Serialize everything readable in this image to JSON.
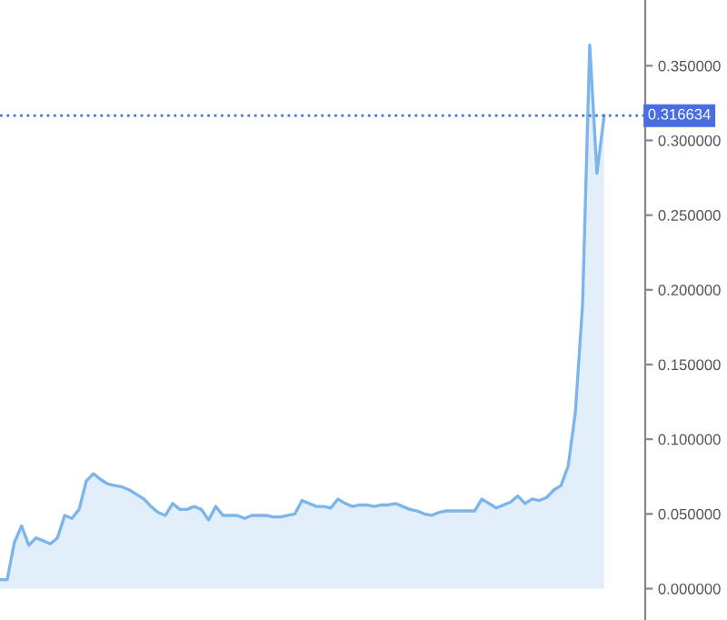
{
  "chart_data": {
    "type": "area",
    "categories": [
      null,
      null,
      null,
      null,
      null,
      null,
      null,
      null,
      null,
      null,
      null,
      null,
      null,
      null,
      null,
      null,
      null,
      null,
      null,
      null,
      null,
      null,
      null,
      null,
      null,
      null,
      null,
      null,
      null,
      null,
      null,
      null,
      null,
      null,
      null,
      null,
      null,
      null,
      null,
      null,
      null,
      null,
      null,
      null,
      null,
      null,
      null,
      null,
      null,
      null,
      null,
      null,
      null,
      null,
      null,
      null,
      null,
      null,
      null,
      null,
      null,
      null,
      null,
      null,
      null,
      null,
      null,
      null,
      null,
      null,
      null,
      null,
      null,
      null,
      null,
      null,
      null,
      null,
      null,
      null,
      null,
      null,
      null,
      null,
      null
    ],
    "series": [
      {
        "color": "#7cb5ec",
        "values": [
          0.006,
          0.006,
          0.031,
          0.042,
          0.029,
          0.034,
          0.032,
          0.03,
          0.034,
          0.049,
          0.047,
          0.053,
          0.072,
          0.077,
          0.073,
          0.07,
          0.069,
          0.068,
          0.066,
          0.063,
          0.06,
          0.055,
          0.051,
          0.049,
          0.057,
          0.053,
          0.053,
          0.055,
          0.053,
          0.046,
          0.055,
          0.049,
          0.049,
          0.049,
          0.047,
          0.049,
          0.049,
          0.049,
          0.048,
          0.048,
          0.049,
          0.05,
          0.059,
          0.057,
          0.055,
          0.055,
          0.054,
          0.06,
          0.057,
          0.055,
          0.056,
          0.056,
          0.055,
          0.056,
          0.056,
          0.057,
          0.055,
          0.053,
          0.052,
          0.05,
          0.049,
          0.051,
          0.052,
          0.052,
          0.052,
          0.052,
          0.052,
          0.06,
          0.057,
          0.054,
          0.056,
          0.058,
          0.062,
          0.057,
          0.06,
          0.059,
          0.061,
          0.066,
          0.069,
          0.082,
          0.118,
          0.19,
          0.364,
          0.278,
          0.316634
        ]
      }
    ],
    "ylim": [
      -0.021,
      0.394
    ],
    "yticks": [
      {
        "value": 0,
        "label": "0.000000"
      },
      {
        "value": 0.05,
        "label": "0.050000"
      },
      {
        "value": 0.1,
        "label": "0.100000"
      },
      {
        "value": 0.15,
        "label": "0.150000"
      },
      {
        "value": 0.2,
        "label": "0.200000"
      },
      {
        "value": 0.25,
        "label": "0.250000"
      },
      {
        "value": 0.3,
        "label": "0.300000"
      },
      {
        "value": 0.35,
        "label": "0.350000"
      }
    ],
    "ref_lines": [
      {
        "axis": "y",
        "value": 0.316634,
        "label": "0.316634",
        "color": "#4a6ee0",
        "line_style": "dotted"
      }
    ],
    "tick_labels": "y"
  }
}
